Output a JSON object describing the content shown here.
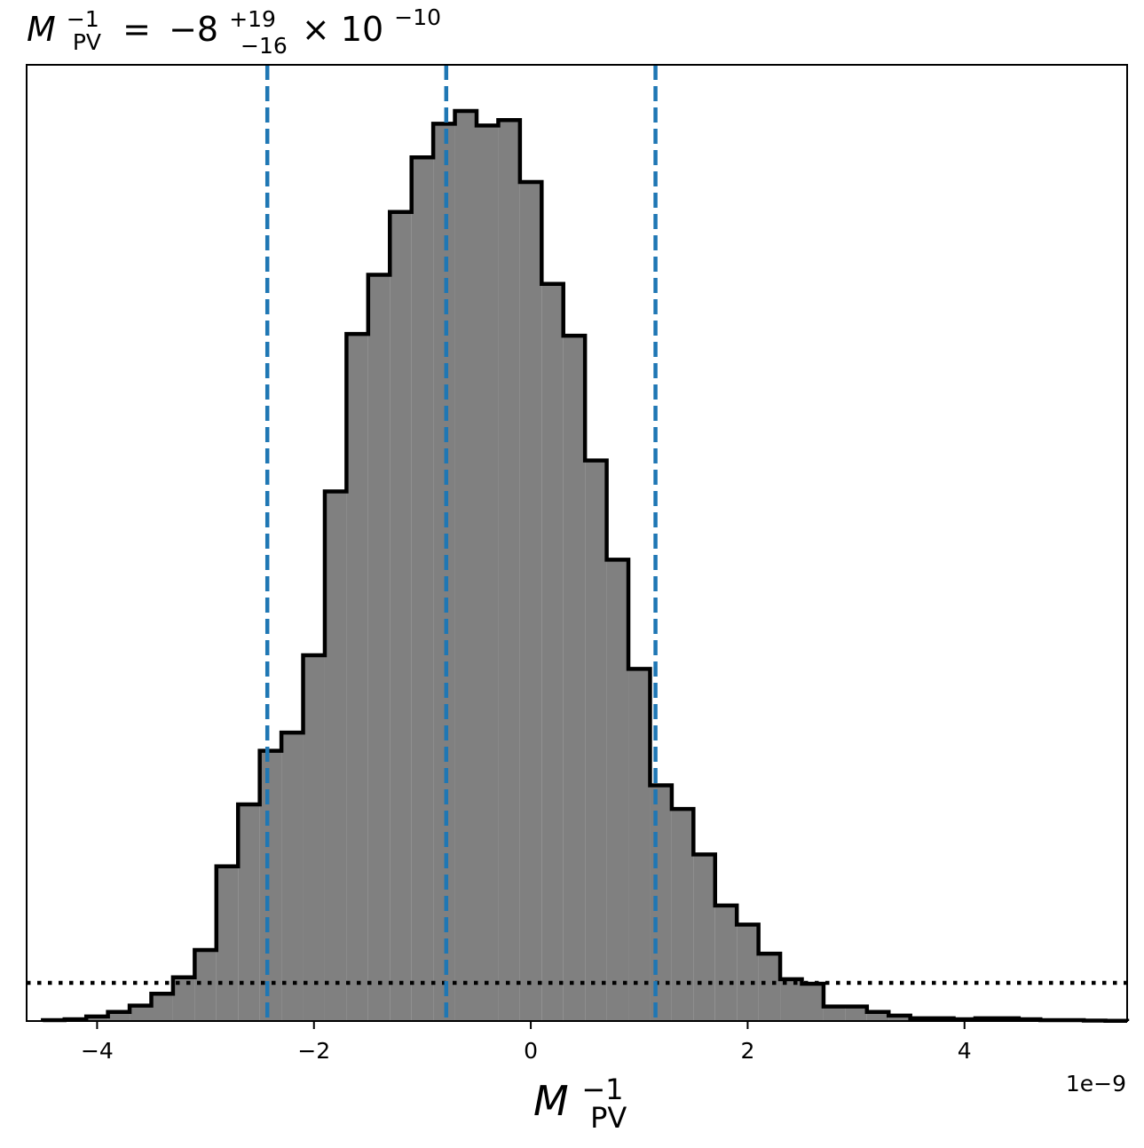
{
  "chart_data": {
    "type": "histogram",
    "title": {
      "symbol": "M",
      "subscript": "PV",
      "superscript": "−1",
      "equals": "=",
      "value": "−8",
      "upper_err": "+19",
      "lower_err": "−16",
      "times": "×",
      "base": "10",
      "exponent": "−10"
    },
    "xlabel": {
      "symbol": "M",
      "subscript": "PV",
      "superscript": "−1"
    },
    "x_offset_label": "1e−9",
    "xlim": [
      -4.65,
      5.5
    ],
    "ylim": [
      0,
      1.0
    ],
    "xticks": [
      -4,
      -2,
      0,
      2,
      4
    ],
    "xtick_labels": [
      "−4",
      "−2",
      "0",
      "2",
      "4"
    ],
    "y_axis_labels_shown": false,
    "bin_start": -4.5,
    "bin_width": 0.2,
    "counts": [
      0.001,
      0.002,
      0.005,
      0.01,
      0.017,
      0.03,
      0.048,
      0.078,
      0.17,
      0.238,
      0.297,
      0.317,
      0.402,
      0.582,
      0.755,
      0.82,
      0.889,
      0.949,
      0.986,
      1.0,
      0.984,
      0.99,
      0.922,
      0.81,
      0.753,
      0.616,
      0.507,
      0.387,
      0.259,
      0.233,
      0.183,
      0.127,
      0.106,
      0.074,
      0.046,
      0.041,
      0.016,
      0.016,
      0.01,
      0.006,
      0.003,
      0.003,
      0.002,
      0.003,
      0.003,
      0.002,
      0.001,
      0.001,
      0.0005,
      0.0003
    ],
    "hist_fill_color": "#808080",
    "hist_edge_color": "#000000",
    "quantile_lines": {
      "values": [
        -2.43,
        -0.78,
        1.15
      ],
      "color": "#1f77b4",
      "style": "dashed"
    },
    "prior_line": {
      "y": 0.042,
      "color": "#000000",
      "style": "dotted"
    },
    "grid": false,
    "legend": "none"
  }
}
